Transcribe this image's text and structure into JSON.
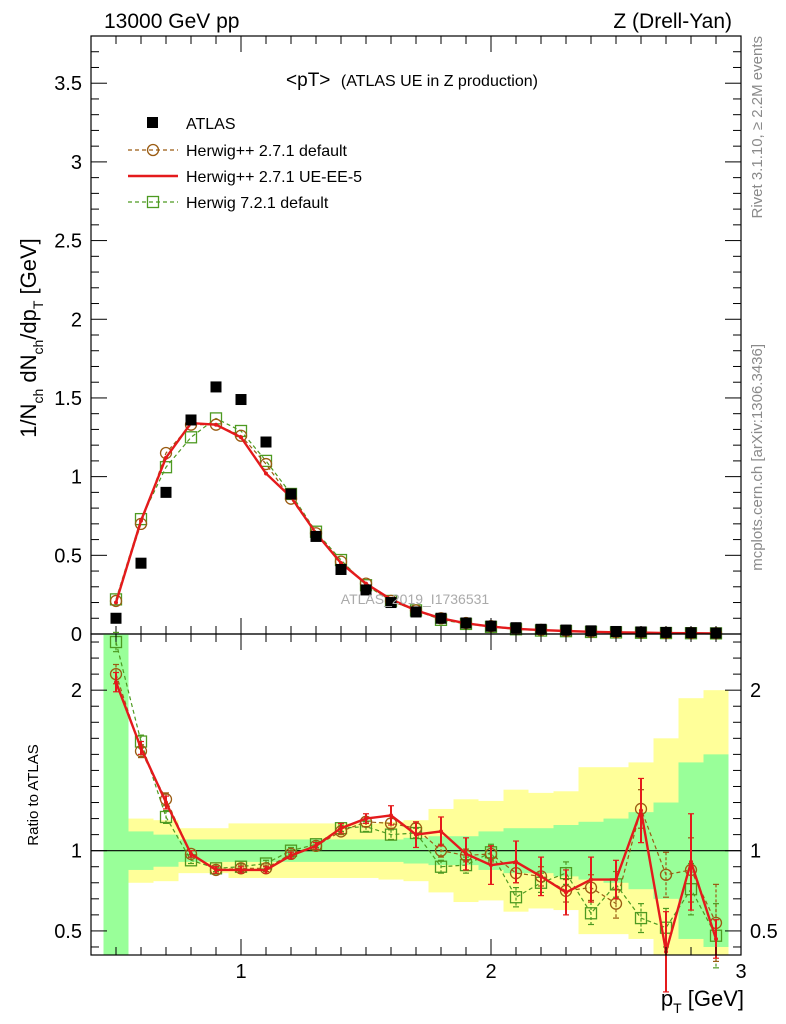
{
  "header": {
    "left": "13000 GeV pp",
    "right": "Z (Drell-Yan)"
  },
  "side_text": {
    "rivet": "Rivet 3.1.10, ≥ 2.2M events",
    "mcplots": "mcplots.cern.ch [arXiv:1306.3436]"
  },
  "chart_data": [
    {
      "type": "scatter",
      "panel": "main",
      "title": "<pT>",
      "subtitle": "(ATLAS UE in Z production)",
      "ylabel_parts": [
        "1/N",
        "ch",
        " dN",
        "ch",
        "/dp",
        "T",
        " [GeV]"
      ],
      "xlim": [
        0.4,
        3.0
      ],
      "ylim": [
        0,
        3.8
      ],
      "yticks": [
        0,
        0.5,
        1,
        1.5,
        2,
        2.5,
        3,
        3.5
      ],
      "ytick_labels": [
        "0",
        "0.5",
        "1",
        "1.5",
        "2",
        "2.5",
        "3",
        "3.5"
      ],
      "watermark": "ATLAS_2019_I1736531",
      "x": [
        0.5,
        0.6,
        0.7,
        0.8,
        0.9,
        1.0,
        1.1,
        1.2,
        1.3,
        1.4,
        1.5,
        1.6,
        1.7,
        1.8,
        1.9,
        2.0,
        2.1,
        2.2,
        2.3,
        2.4,
        2.5,
        2.6,
        2.7,
        2.8,
        2.9
      ],
      "series": [
        {
          "name": "ATLAS",
          "style": "data",
          "color": "#000000",
          "values": [
            0.1,
            0.45,
            0.9,
            1.36,
            1.57,
            1.49,
            1.22,
            0.89,
            0.62,
            0.41,
            0.28,
            0.2,
            0.14,
            0.1,
            0.07,
            0.05,
            0.04,
            0.03,
            0.025,
            0.02,
            0.016,
            0.013,
            0.01,
            0.008,
            0.006
          ]
        },
        {
          "name": "Herwig++ 2.7.1 default",
          "style": "circle",
          "color": "#9a5b12",
          "values": [
            0.21,
            0.7,
            1.15,
            1.33,
            1.33,
            1.26,
            1.08,
            0.86,
            0.64,
            0.46,
            0.32,
            0.21,
            0.15,
            0.1,
            0.07,
            0.05,
            0.035,
            0.026,
            0.02,
            0.015,
            0.012,
            0.01,
            0.007,
            0.006,
            0.005
          ]
        },
        {
          "name": "Herwig++ 2.7.1 UE-EE-5",
          "style": "line",
          "color": "#e41a1c",
          "values": [
            0.2,
            0.72,
            1.12,
            1.34,
            1.33,
            1.25,
            1.02,
            0.87,
            0.64,
            0.45,
            0.32,
            0.22,
            0.15,
            0.1,
            0.068,
            0.047,
            0.033,
            0.025,
            0.019,
            0.014,
            0.011,
            0.009,
            0.006,
            0.005,
            0.004
          ]
        },
        {
          "name": "Herwig 7.2.1 default",
          "style": "square",
          "color": "#4d9a21",
          "values": [
            0.22,
            0.73,
            1.06,
            1.25,
            1.37,
            1.29,
            1.1,
            0.89,
            0.65,
            0.47,
            0.31,
            0.21,
            0.15,
            0.09,
            0.064,
            0.045,
            0.03,
            0.022,
            0.018,
            0.013,
            0.01,
            0.008,
            0.006,
            0.005,
            0.004
          ]
        }
      ]
    },
    {
      "type": "scatter",
      "panel": "ratio",
      "ylabel": "Ratio to ATLAS",
      "xlabel_parts": [
        "p",
        "T",
        " [GeV]"
      ],
      "xlim": [
        0.4,
        3.0
      ],
      "ylim": [
        0.35,
        2.35
      ],
      "yticks": [
        0.5,
        1,
        2
      ],
      "ytick_labels": [
        "0.5",
        "1",
        "2"
      ],
      "xticks": [
        1,
        2,
        3
      ],
      "xtick_labels": [
        "1",
        "2",
        "3"
      ],
      "x": [
        0.5,
        0.6,
        0.7,
        0.8,
        0.9,
        1.0,
        1.1,
        1.2,
        1.3,
        1.4,
        1.5,
        1.6,
        1.7,
        1.8,
        1.9,
        2.0,
        2.1,
        2.2,
        2.3,
        2.4,
        2.5,
        2.6,
        2.7,
        2.8,
        2.9
      ],
      "band_inner_halfwidth": [
        1.9,
        0.12,
        0.1,
        0.07,
        0.07,
        0.07,
        0.07,
        0.07,
        0.07,
        0.07,
        0.07,
        0.07,
        0.08,
        0.09,
        0.09,
        0.12,
        0.14,
        0.14,
        0.16,
        0.18,
        0.2,
        0.24,
        0.3,
        0.55,
        0.6
      ],
      "band_outer_halfwidth": [
        2.2,
        0.2,
        0.19,
        0.14,
        0.14,
        0.17,
        0.17,
        0.17,
        0.17,
        0.17,
        0.17,
        0.18,
        0.19,
        0.26,
        0.32,
        0.31,
        0.38,
        0.36,
        0.37,
        0.52,
        0.52,
        0.55,
        0.7,
        0.95,
        1.0
      ],
      "series": [
        {
          "name": "Herwig++ 2.7.1 default",
          "style": "circle",
          "color": "#9a5b12",
          "values": [
            2.1,
            1.62,
            1.32,
            0.98,
            0.88,
            0.89,
            0.89,
            0.98,
            1.03,
            1.12,
            1.18,
            1.17,
            1.14,
            1.0,
            0.97,
            0.98,
            0.86,
            0.84,
            0.75,
            0.77,
            0.67,
            1.26,
            0.85,
            0.88,
            0.55
          ],
          "errors": [
            0.06,
            0.04,
            0.04,
            0.02,
            0.02,
            0.02,
            0.02,
            0.02,
            0.02,
            0.02,
            0.03,
            0.03,
            0.03,
            0.04,
            0.04,
            0.05,
            0.06,
            0.06,
            0.07,
            0.08,
            0.09,
            0.12,
            0.14,
            0.2,
            0.24
          ]
        },
        {
          "name": "Herwig++ 2.7.1 UE-EE-5",
          "style": "line",
          "color": "#e41a1c",
          "values": [
            2.05,
            1.64,
            1.3,
            0.98,
            0.88,
            0.88,
            0.88,
            0.97,
            1.03,
            1.14,
            1.2,
            1.22,
            1.1,
            1.12,
            0.98,
            0.91,
            0.93,
            0.84,
            0.74,
            0.82,
            0.82,
            1.25,
            0.37,
            0.93,
            0.45
          ],
          "errors": [
            0.06,
            0.04,
            0.04,
            0.02,
            0.02,
            0.02,
            0.02,
            0.02,
            0.02,
            0.03,
            0.03,
            0.06,
            0.08,
            0.09,
            0.1,
            0.12,
            0.13,
            0.12,
            0.14,
            0.14,
            0.12,
            0.2,
            0.25,
            0.3,
            0.12
          ]
        },
        {
          "name": "Herwig 7.2.1 default",
          "style": "square",
          "color": "#4d9a21",
          "values": [
            2.3,
            1.68,
            1.21,
            0.94,
            0.89,
            0.9,
            0.92,
            1.0,
            1.04,
            1.14,
            1.15,
            1.1,
            1.11,
            0.9,
            0.91,
            0.99,
            0.71,
            0.8,
            0.86,
            0.61,
            0.79,
            0.58,
            0.52,
            0.76,
            0.47
          ],
          "errors": [
            0.06,
            0.04,
            0.04,
            0.02,
            0.02,
            0.02,
            0.02,
            0.02,
            0.02,
            0.02,
            0.03,
            0.03,
            0.03,
            0.04,
            0.05,
            0.05,
            0.06,
            0.06,
            0.07,
            0.07,
            0.08,
            0.09,
            0.12,
            0.16,
            0.2
          ]
        }
      ]
    }
  ]
}
